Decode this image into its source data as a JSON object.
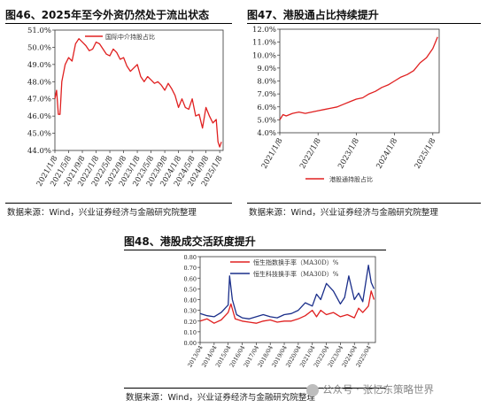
{
  "figures": {
    "fig46_title": "图46、2025年至今外资仍然处于流出状态",
    "fig47_title": "图47、港股通占比持续提升",
    "fig48_title": "图48、港股成交活跃度提升",
    "source_text": "数据来源：Wind，兴业证券经济与金融研究院整理"
  },
  "watermark": {
    "text": "公众号 · 张忆东策略世界"
  },
  "chart_data": [
    {
      "type": "line",
      "ylim": [
        44,
        51
      ],
      "yticks": [
        44,
        45,
        46,
        47,
        48,
        49,
        50,
        51
      ],
      "ytick_labels": [
        "44.0%",
        "45.0%",
        "46.0%",
        "47.0%",
        "48.0%",
        "49.0%",
        "50.0%",
        "51.0%"
      ],
      "xlim": [
        0,
        49
      ],
      "xticks": [
        0,
        4,
        8,
        12,
        16,
        20,
        24,
        28,
        32,
        36,
        40,
        44,
        48
      ],
      "xtick_labels": [
        "2021/1/8",
        "2021/5/8",
        "2021/9/8",
        "2022/1/8",
        "2022/5/8",
        "2022/9/8",
        "2023/1/8",
        "2023/5/8",
        "2023/9/8",
        "2024/1/8",
        "2024/5/8",
        "2024/9/8",
        "2025/1/8"
      ],
      "series": [
        {
          "name": "国际中介持股占比",
          "color": "#e02020",
          "x": [
            0,
            0.5,
            1,
            1.5,
            2,
            3,
            4,
            5,
            6,
            7,
            8,
            9,
            10,
            11,
            12,
            13,
            14,
            15,
            16,
            17,
            18,
            19,
            20,
            21,
            22,
            23,
            24,
            25,
            26,
            27,
            28,
            29,
            30,
            31,
            32,
            33,
            34,
            35,
            36,
            37,
            38,
            39,
            40,
            41,
            42,
            43,
            44,
            45,
            46,
            47,
            47.5,
            48,
            48.5
          ],
          "values": [
            47.0,
            47.5,
            46.1,
            46.1,
            48.0,
            49.0,
            49.4,
            49.2,
            50.2,
            50.5,
            50.3,
            50.1,
            49.8,
            49.9,
            50.3,
            50.2,
            49.9,
            49.6,
            49.5,
            49.9,
            49.7,
            49.3,
            49.4,
            48.9,
            48.6,
            48.8,
            49.0,
            48.3,
            48.0,
            48.3,
            48.1,
            47.9,
            48.0,
            47.8,
            47.5,
            47.9,
            47.6,
            47.2,
            46.5,
            47.0,
            46.5,
            46.4,
            47.0,
            46.0,
            46.1,
            45.3,
            46.5,
            46.0,
            45.6,
            45.8,
            44.5,
            44.2,
            44.5
          ]
        }
      ]
    },
    {
      "type": "line",
      "ylim": [
        4,
        12
      ],
      "yticks": [
        4,
        5,
        6,
        7,
        8,
        9,
        10,
        11,
        12
      ],
      "ytick_labels": [
        "4.0%",
        "5.0%",
        "6.0%",
        "7.0%",
        "8.0%",
        "9.0%",
        "10.0%",
        "11.0%",
        "12.0%"
      ],
      "xlim": [
        0,
        50
      ],
      "xticks": [
        0,
        12,
        24,
        36,
        48
      ],
      "xtick_labels": [
        "2021/1/8",
        "2022/1/8",
        "2023/1/8",
        "2024/1/8",
        "2025/1/8"
      ],
      "series": [
        {
          "name": "港股通持股占比",
          "color": "#e02020",
          "x": [
            0,
            1,
            2,
            4,
            6,
            8,
            10,
            12,
            14,
            16,
            18,
            20,
            22,
            24,
            26,
            28,
            30,
            32,
            34,
            36,
            38,
            40,
            42,
            44,
            46,
            48,
            49.5
          ],
          "values": [
            5.0,
            5.4,
            5.3,
            5.5,
            5.6,
            5.5,
            5.6,
            5.7,
            5.8,
            5.9,
            6.0,
            6.2,
            6.4,
            6.6,
            6.7,
            7.0,
            7.2,
            7.5,
            7.7,
            8.0,
            8.3,
            8.5,
            8.8,
            9.4,
            9.8,
            10.5,
            11.4
          ]
        }
      ]
    },
    {
      "type": "line",
      "ylim": [
        0,
        0.8
      ],
      "yticks": [
        0,
        0.1,
        0.2,
        0.3,
        0.4,
        0.5,
        0.6,
        0.7,
        0.8
      ],
      "ytick_labels": [
        "0.00",
        "0.10",
        "0.20",
        "0.30",
        "0.40",
        "0.50",
        "0.60",
        "0.70",
        "0.80"
      ],
      "xlim": [
        0,
        12.5
      ],
      "xticks": [
        0,
        1,
        2,
        3,
        4,
        5,
        6,
        7,
        8,
        9,
        10,
        11,
        12
      ],
      "xtick_labels": [
        "2013/04",
        "2014/04",
        "2015/04",
        "2016/04",
        "2017/04",
        "2018/04",
        "2019/04",
        "2020/04",
        "2021/04",
        "2022/04",
        "2023/04",
        "2024/04",
        "2025/04"
      ],
      "series": [
        {
          "name": "恒生指数换手率（MA30D）%",
          "color": "#e02020",
          "x": [
            0,
            0.5,
            1,
            1.5,
            2,
            2.2,
            2.5,
            3,
            3.5,
            4,
            4.5,
            5,
            5.5,
            6,
            6.5,
            7,
            7.5,
            8,
            8.3,
            8.6,
            9,
            9.5,
            10,
            10.5,
            11,
            11.3,
            11.6,
            12,
            12.2,
            12.4
          ],
          "values": [
            0.2,
            0.22,
            0.18,
            0.21,
            0.28,
            0.36,
            0.22,
            0.2,
            0.19,
            0.18,
            0.2,
            0.21,
            0.19,
            0.2,
            0.2,
            0.22,
            0.25,
            0.3,
            0.24,
            0.3,
            0.26,
            0.28,
            0.24,
            0.26,
            0.23,
            0.32,
            0.28,
            0.34,
            0.48,
            0.4
          ]
        },
        {
          "name": "恒生科技换手率（MA30D）%",
          "color": "#1a2e8a",
          "x": [
            0,
            0.5,
            1,
            1.5,
            2,
            2.1,
            2.3,
            2.6,
            3,
            3.5,
            4,
            4.5,
            5,
            5.5,
            6,
            6.5,
            7,
            7.5,
            8,
            8.3,
            8.6,
            9,
            9.5,
            10,
            10.3,
            10.6,
            11,
            11.3,
            11.6,
            12,
            12.2,
            12.4
          ],
          "values": [
            0.27,
            0.25,
            0.24,
            0.28,
            0.35,
            0.62,
            0.4,
            0.26,
            0.23,
            0.22,
            0.24,
            0.26,
            0.24,
            0.23,
            0.26,
            0.27,
            0.3,
            0.37,
            0.34,
            0.45,
            0.4,
            0.55,
            0.48,
            0.36,
            0.42,
            0.62,
            0.4,
            0.46,
            0.38,
            0.72,
            0.56,
            0.5
          ]
        }
      ]
    }
  ]
}
